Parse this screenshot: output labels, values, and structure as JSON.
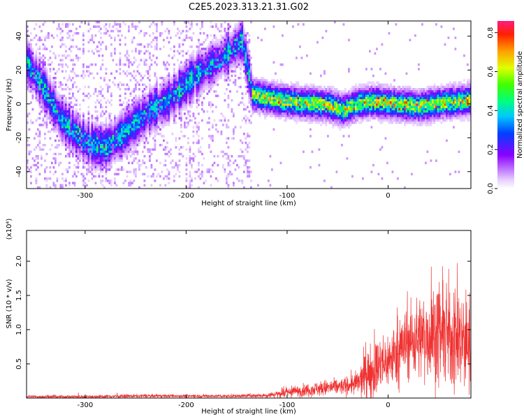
{
  "title": "C2E5.2023.313.21.31.G02",
  "chart_data": [
    {
      "type": "heatmap",
      "xlabel": "Height of straight line (km)",
      "ylabel": "Frequency (Hz)",
      "xlim": [
        -358,
        82
      ],
      "ylim": [
        -50,
        49
      ],
      "xticks": [
        -300,
        -200,
        -100,
        0
      ],
      "yticks": [
        -40,
        -20,
        0,
        20,
        40
      ],
      "colorbar": {
        "label": "Normalized spectral amplitude",
        "range": [
          0.0,
          0.86
        ],
        "ticks": [
          0.0,
          0.2,
          0.4,
          0.6,
          0.8
        ]
      },
      "ridge_x": [
        -358,
        -340,
        -325,
        -310,
        -295,
        -280,
        -265,
        -250,
        -235,
        -220,
        -205,
        -190,
        -175,
        -160,
        -145,
        -135,
        -120,
        -100,
        -80,
        -60,
        -45,
        -30,
        -15,
        0,
        15,
        30,
        50,
        65,
        82
      ],
      "ridge_y": [
        25,
        8,
        -8,
        -17,
        -24,
        -25,
        -18,
        -10,
        -3,
        2,
        10,
        18,
        24,
        30,
        38,
        6,
        4,
        2,
        1,
        0,
        -3,
        1,
        2,
        1,
        0,
        -1,
        1,
        2,
        3
      ]
    },
    {
      "type": "line",
      "xlabel": "Height of straight line (km)",
      "ylabel": "SNR (10 * v/v)",
      "y_multiplier": "(x10⁴)",
      "xlim": [
        -358,
        82
      ],
      "ylim": [
        0,
        2.45
      ],
      "xticks": [
        -300,
        -200,
        -100,
        0
      ],
      "yticks": [
        0.5,
        1.0,
        1.5,
        2.0
      ],
      "envelope_x": [
        -358,
        -300,
        -250,
        -200,
        -150,
        -120,
        -100,
        -80,
        -60,
        -45,
        -30,
        -20,
        -10,
        0,
        10,
        20,
        30,
        40,
        50,
        60,
        70,
        82
      ],
      "envelope_mean": [
        0.02,
        0.02,
        0.03,
        0.03,
        0.03,
        0.04,
        0.08,
        0.12,
        0.15,
        0.17,
        0.22,
        0.35,
        0.45,
        0.55,
        0.68,
        0.82,
        0.88,
        0.92,
        0.92,
        0.9,
        0.85,
        0.8
      ],
      "envelope_amp": [
        0.015,
        0.02,
        0.02,
        0.02,
        0.02,
        0.03,
        0.06,
        0.08,
        0.1,
        0.1,
        0.15,
        0.35,
        0.35,
        0.35,
        0.4,
        0.45,
        0.5,
        0.55,
        0.6,
        0.65,
        0.65,
        0.6
      ],
      "series_color": "#f03232"
    }
  ]
}
